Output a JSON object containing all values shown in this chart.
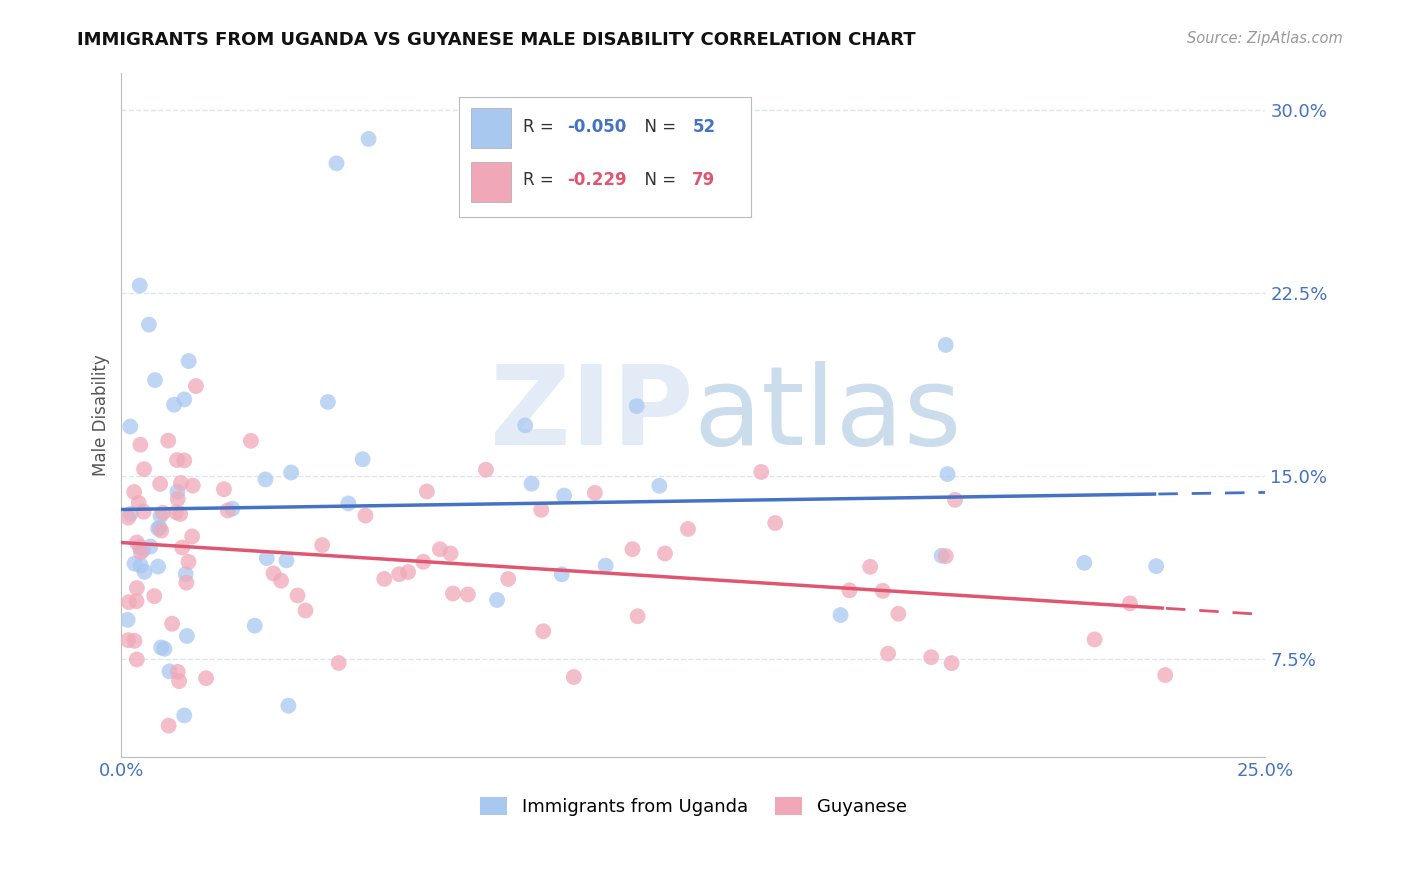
{
  "title": "IMMIGRANTS FROM UGANDA VS GUYANESE MALE DISABILITY CORRELATION CHART",
  "source": "Source: ZipAtlas.com",
  "ylabel": "Male Disability",
  "xlim": [
    0.0,
    0.25
  ],
  "ylim": [
    0.035,
    0.315
  ],
  "xticks": [
    0.0,
    0.05,
    0.1,
    0.15,
    0.2,
    0.25
  ],
  "xticklabels": [
    "0.0%",
    "",
    "",
    "",
    "",
    "25.0%"
  ],
  "yticks": [
    0.075,
    0.15,
    0.225,
    0.3
  ],
  "yticklabels": [
    "7.5%",
    "15.0%",
    "22.5%",
    "30.0%"
  ],
  "legend1_R": "-0.050",
  "legend1_N": "52",
  "legend2_R": "-0.229",
  "legend2_N": "79",
  "blue_color": "#a8c8f0",
  "pink_color": "#f0a8b8",
  "blue_line_color": "#4472c4",
  "pink_line_color": "#e05570",
  "background_color": "#ffffff",
  "grid_color": "#dde5f0"
}
